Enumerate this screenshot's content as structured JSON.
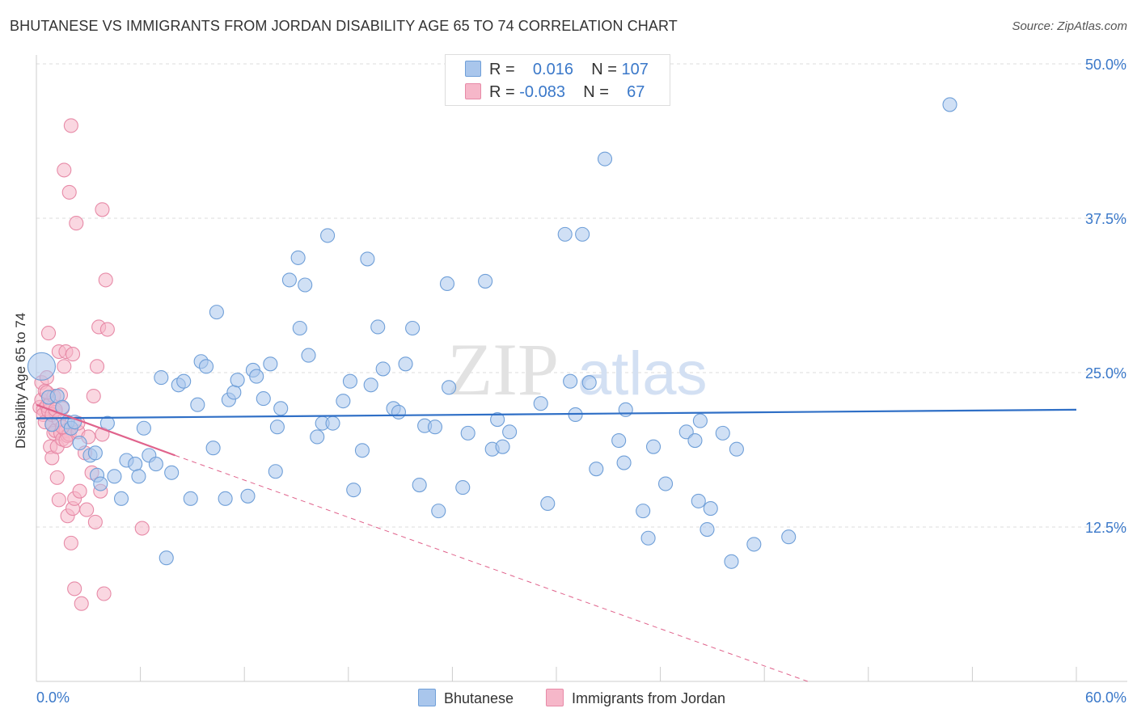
{
  "title": "BHUTANESE VS IMMIGRANTS FROM JORDAN DISABILITY AGE 65 TO 74 CORRELATION CHART",
  "source": "Source: ZipAtlas.com",
  "watermark": {
    "zip": "ZIP",
    "atlas": "atlas"
  },
  "legend": {
    "rows": [
      {
        "r_label": "R =",
        "r_value": "0.016",
        "n_label": "N =",
        "n_value": "107"
      },
      {
        "r_label": "R =",
        "r_value": "-0.083",
        "n_label": "N =",
        "n_value": "67"
      }
    ]
  },
  "bottom_legend": {
    "series1": "Bhutanese",
    "series2": "Immigrants from Jordan"
  },
  "colors": {
    "blue_fill": "#a9c6ec",
    "blue_stroke": "#6f9fd8",
    "blue_line": "#2f6fc6",
    "pink_fill": "#f6b7c9",
    "pink_stroke": "#e78aa7",
    "pink_line": "#e0638c",
    "tick_label": "#3a78c9",
    "grid": "#dddddd"
  },
  "chart_data": {
    "type": "scatter",
    "title": "BHUTANESE VS IMMIGRANTS FROM JORDAN DISABILITY AGE 65 TO 74 CORRELATION CHART",
    "xlabel": "",
    "ylabel": "Disability Age 65 to 74",
    "xlim": [
      0,
      60
    ],
    "ylim": [
      0,
      50
    ],
    "x_tick_labels": [
      "0.0%",
      "60.0%"
    ],
    "y_ticks": [
      12.5,
      25.0,
      37.5,
      50.0
    ],
    "y_tick_labels": [
      "12.5%",
      "25.0%",
      "37.5%",
      "50.0%"
    ],
    "series": [
      {
        "name": "Bhutanese",
        "r": 0.016,
        "n": 107,
        "trend": {
          "x0": 0,
          "y0": 21.3,
          "x1": 60,
          "y1": 22.0,
          "style": "solid"
        },
        "points": [
          [
            0.3,
            25.5
          ],
          [
            0.7,
            23.0
          ],
          [
            1.2,
            23.1
          ],
          [
            1.5,
            22.2
          ],
          [
            1.8,
            21.0
          ],
          [
            2.0,
            20.5
          ],
          [
            2.5,
            19.3
          ],
          [
            3.1,
            18.3
          ],
          [
            3.4,
            18.5
          ],
          [
            3.5,
            16.7
          ],
          [
            3.7,
            16.0
          ],
          [
            4.1,
            20.9
          ],
          [
            4.5,
            16.6
          ],
          [
            4.9,
            14.8
          ],
          [
            5.2,
            17.9
          ],
          [
            5.7,
            17.6
          ],
          [
            5.9,
            16.6
          ],
          [
            6.2,
            20.5
          ],
          [
            6.5,
            18.3
          ],
          [
            6.9,
            17.6
          ],
          [
            7.2,
            24.6
          ],
          [
            7.5,
            10.0
          ],
          [
            7.8,
            16.9
          ],
          [
            8.2,
            24.0
          ],
          [
            8.5,
            24.3
          ],
          [
            8.9,
            14.8
          ],
          [
            9.3,
            22.4
          ],
          [
            9.5,
            25.9
          ],
          [
            9.8,
            25.5
          ],
          [
            10.2,
            18.9
          ],
          [
            10.4,
            29.9
          ],
          [
            10.9,
            14.8
          ],
          [
            11.1,
            22.8
          ],
          [
            11.4,
            23.4
          ],
          [
            11.6,
            24.4
          ],
          [
            12.2,
            15.0
          ],
          [
            12.5,
            25.2
          ],
          [
            12.7,
            24.7
          ],
          [
            13.1,
            22.9
          ],
          [
            13.5,
            25.7
          ],
          [
            13.8,
            17.0
          ],
          [
            13.9,
            20.6
          ],
          [
            14.1,
            22.1
          ],
          [
            14.6,
            32.5
          ],
          [
            15.1,
            34.3
          ],
          [
            15.2,
            28.6
          ],
          [
            15.5,
            32.1
          ],
          [
            15.7,
            26.4
          ],
          [
            16.2,
            19.8
          ],
          [
            16.5,
            20.9
          ],
          [
            16.8,
            36.1
          ],
          [
            17.1,
            20.9
          ],
          [
            17.7,
            22.7
          ],
          [
            18.1,
            24.3
          ],
          [
            18.3,
            15.5
          ],
          [
            18.8,
            18.7
          ],
          [
            19.1,
            34.2
          ],
          [
            19.3,
            24.0
          ],
          [
            19.7,
            28.7
          ],
          [
            20.0,
            25.3
          ],
          [
            20.6,
            22.1
          ],
          [
            20.9,
            21.8
          ],
          [
            21.3,
            25.7
          ],
          [
            21.7,
            28.6
          ],
          [
            22.1,
            15.9
          ],
          [
            22.4,
            20.7
          ],
          [
            23.0,
            20.6
          ],
          [
            23.2,
            13.8
          ],
          [
            23.7,
            32.2
          ],
          [
            23.8,
            23.8
          ],
          [
            24.6,
            15.7
          ],
          [
            24.9,
            20.1
          ],
          [
            25.9,
            32.4
          ],
          [
            26.3,
            18.8
          ],
          [
            26.6,
            21.2
          ],
          [
            26.9,
            19.0
          ],
          [
            27.3,
            20.2
          ],
          [
            29.1,
            22.5
          ],
          [
            29.5,
            14.4
          ],
          [
            30.5,
            36.2
          ],
          [
            30.8,
            24.3
          ],
          [
            31.1,
            21.6
          ],
          [
            31.5,
            36.2
          ],
          [
            31.9,
            24.2
          ],
          [
            32.3,
            17.2
          ],
          [
            32.8,
            42.3
          ],
          [
            33.6,
            19.5
          ],
          [
            33.9,
            17.7
          ],
          [
            34.0,
            22.0
          ],
          [
            35.0,
            13.8
          ],
          [
            35.3,
            11.6
          ],
          [
            35.6,
            19.0
          ],
          [
            36.3,
            16.0
          ],
          [
            37.5,
            20.2
          ],
          [
            38.0,
            19.5
          ],
          [
            38.2,
            14.6
          ],
          [
            38.3,
            21.1
          ],
          [
            38.7,
            12.3
          ],
          [
            38.9,
            14.0
          ],
          [
            39.6,
            20.1
          ],
          [
            40.1,
            9.7
          ],
          [
            40.4,
            18.8
          ],
          [
            41.4,
            11.1
          ],
          [
            43.4,
            11.7
          ],
          [
            52.7,
            46.7
          ],
          [
            0.9,
            20.8
          ],
          [
            2.2,
            21.0
          ]
        ]
      },
      {
        "name": "Immigrants from Jordan",
        "r": -0.083,
        "n": 67,
        "trend": {
          "x0": 0,
          "y0": 22.4,
          "x1": 8.0,
          "y1": 18.3,
          "style": "solid"
        },
        "trend_extension": {
          "x0": 8.0,
          "y0": 18.3,
          "x1": 44.5,
          "y1": 0.0,
          "style": "dashed"
        },
        "points": [
          [
            0.2,
            22.2
          ],
          [
            0.3,
            24.2
          ],
          [
            0.3,
            22.8
          ],
          [
            0.4,
            22.0
          ],
          [
            0.4,
            21.6
          ],
          [
            0.5,
            23.5
          ],
          [
            0.5,
            21.0
          ],
          [
            0.6,
            22.3
          ],
          [
            0.6,
            24.6
          ],
          [
            0.7,
            28.2
          ],
          [
            0.7,
            21.9
          ],
          [
            0.8,
            22.5
          ],
          [
            0.8,
            19.0
          ],
          [
            0.9,
            20.8
          ],
          [
            0.9,
            18.1
          ],
          [
            1.0,
            23.1
          ],
          [
            1.0,
            20.1
          ],
          [
            1.1,
            21.8
          ],
          [
            1.1,
            20.3
          ],
          [
            1.2,
            19.0
          ],
          [
            1.2,
            16.5
          ],
          [
            1.3,
            14.7
          ],
          [
            1.3,
            26.7
          ],
          [
            1.4,
            23.2
          ],
          [
            1.4,
            20.1
          ],
          [
            1.5,
            19.6
          ],
          [
            1.5,
            22.1
          ],
          [
            1.6,
            41.4
          ],
          [
            1.6,
            25.5
          ],
          [
            1.7,
            26.7
          ],
          [
            1.7,
            20.3
          ],
          [
            1.8,
            19.9
          ],
          [
            1.8,
            13.4
          ],
          [
            1.9,
            39.6
          ],
          [
            1.9,
            20.0
          ],
          [
            2.0,
            45.0
          ],
          [
            2.0,
            11.2
          ],
          [
            2.1,
            26.5
          ],
          [
            2.1,
            14.0
          ],
          [
            2.2,
            7.5
          ],
          [
            2.2,
            14.8
          ],
          [
            2.3,
            37.1
          ],
          [
            2.4,
            20.2
          ],
          [
            2.5,
            15.4
          ],
          [
            2.6,
            6.3
          ],
          [
            2.8,
            18.5
          ],
          [
            2.9,
            13.9
          ],
          [
            3.0,
            19.8
          ],
          [
            3.2,
            16.9
          ],
          [
            3.3,
            23.1
          ],
          [
            3.4,
            12.9
          ],
          [
            3.5,
            25.5
          ],
          [
            3.6,
            28.7
          ],
          [
            3.7,
            15.4
          ],
          [
            3.8,
            20.0
          ],
          [
            3.8,
            38.2
          ],
          [
            3.9,
            7.1
          ],
          [
            4.0,
            32.5
          ],
          [
            4.1,
            28.5
          ],
          [
            6.1,
            12.4
          ],
          [
            0.6,
            23.4
          ],
          [
            0.9,
            21.6
          ],
          [
            1.1,
            22.0
          ],
          [
            1.3,
            21.2
          ],
          [
            1.5,
            20.6
          ],
          [
            1.7,
            19.5
          ],
          [
            2.4,
            20.9
          ]
        ]
      }
    ]
  }
}
